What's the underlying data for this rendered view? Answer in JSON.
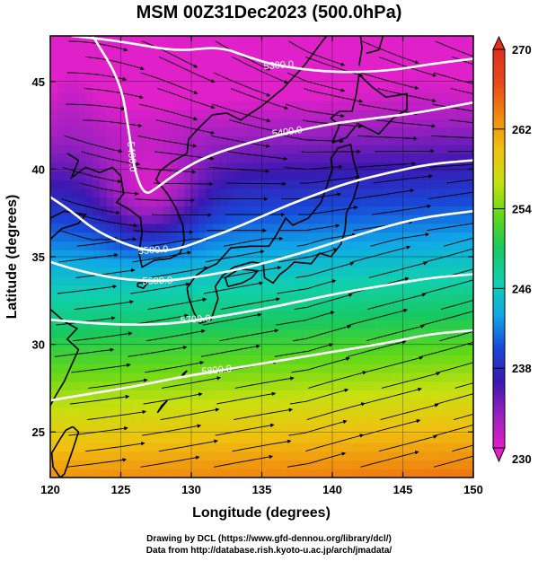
{
  "title": "MSM 00Z31Dec2023 (500.0hPa)",
  "x_axis": {
    "label": "Longitude (degrees)",
    "min": 120,
    "max": 150,
    "ticks": [
      "120",
      "125",
      "130",
      "135",
      "140",
      "145",
      "150"
    ]
  },
  "y_axis": {
    "label": "Latitude  (degrees)",
    "min": 22.4,
    "max": 47.6,
    "ticks": [
      "25",
      "30",
      "35",
      "40",
      "45"
    ]
  },
  "colorbar": {
    "min": 230,
    "max": 270,
    "ticks": [
      "230",
      "238",
      "246",
      "254",
      "262",
      "270"
    ],
    "colors": [
      "#e020c8",
      "#9a20c0",
      "#3a18b0",
      "#1848d8",
      "#10a8e8",
      "#10d0b0",
      "#18c860",
      "#60d818",
      "#c8e010",
      "#f0c010",
      "#f08810",
      "#e84818",
      "#e03020"
    ]
  },
  "contour_labels": [
    "5300.0",
    "5400.0",
    "5400.0",
    "5500.0",
    "5600.0",
    "5700.0",
    "5800.0"
  ],
  "footer": {
    "line1": "Drawing by DCL (https://www.gfd-dennou.org/library/dcl/)",
    "line2": "Data from http://database.rish.kyoto-u.ac.jp/arch/jmadata/"
  },
  "chart_data": {
    "type": "heatmap",
    "title": "MSM 00Z31Dec2023 (500.0hPa)",
    "xlabel": "Longitude (degrees)",
    "ylabel": "Latitude  (degrees)",
    "xlim": [
      120,
      150
    ],
    "ylim": [
      22.4,
      47.6
    ],
    "value_range": [
      230,
      270
    ],
    "field": "temperature (shading) with geopotential height contours and wind streamlines",
    "contours": [
      {
        "label": "5300.0",
        "points": [
          [
            121.5,
            47.6
          ],
          [
            125,
            47.3
          ],
          [
            129,
            46.7
          ],
          [
            132,
            47.0
          ],
          [
            134,
            46.4
          ],
          [
            136,
            45.9
          ],
          [
            140,
            45.5
          ],
          [
            144,
            45.6
          ],
          [
            147,
            46.0
          ],
          [
            150,
            46.3
          ]
        ]
      },
      {
        "label": "5400.0",
        "points": [
          [
            123,
            47.6
          ],
          [
            125,
            45
          ],
          [
            125.6,
            42
          ],
          [
            126,
            39.8
          ],
          [
            126.7,
            38.5
          ],
          [
            127.5,
            38.9
          ],
          [
            129,
            39.8
          ],
          [
            131,
            40.7
          ],
          [
            134,
            41.5
          ],
          [
            137,
            42.1
          ],
          [
            140,
            42.6
          ],
          [
            143,
            42.9
          ],
          [
            146,
            43.2
          ],
          [
            150,
            43.8
          ]
        ]
      },
      {
        "label": "5500.0",
        "points": [
          [
            120,
            38.4
          ],
          [
            121.5,
            37.6
          ],
          [
            123,
            36.6
          ],
          [
            125,
            35.8
          ],
          [
            127,
            35.3
          ],
          [
            129,
            35.4
          ],
          [
            131,
            36.0
          ],
          [
            133,
            36.6
          ],
          [
            135,
            37.3
          ],
          [
            137,
            38.0
          ],
          [
            139,
            38.6
          ],
          [
            141,
            39.2
          ],
          [
            144,
            39.8
          ],
          [
            147,
            40.3
          ],
          [
            150,
            40.5
          ]
        ]
      },
      {
        "label": "5600.0",
        "points": [
          [
            120,
            34.7
          ],
          [
            122,
            34.2
          ],
          [
            125,
            33.7
          ],
          [
            128,
            33.6
          ],
          [
            130,
            33.8
          ],
          [
            133,
            34.2
          ],
          [
            136,
            34.8
          ],
          [
            139,
            35.5
          ],
          [
            142,
            36.3
          ],
          [
            146,
            37.2
          ],
          [
            150,
            37.6
          ]
        ]
      },
      {
        "label": "5700.0",
        "points": [
          [
            120,
            31.4
          ],
          [
            123,
            31.2
          ],
          [
            126,
            31.1
          ],
          [
            129,
            31.2
          ],
          [
            132,
            31.6
          ],
          [
            135,
            32.0
          ],
          [
            138,
            32.5
          ],
          [
            141,
            33.0
          ],
          [
            144,
            33.4
          ],
          [
            147,
            33.8
          ],
          [
            150,
            34.0
          ]
        ]
      },
      {
        "label": "5800.0",
        "points": [
          [
            120,
            26.8
          ],
          [
            123,
            27.2
          ],
          [
            126,
            27.6
          ],
          [
            129,
            28.1
          ],
          [
            132,
            28.5
          ],
          [
            135,
            28.9
          ],
          [
            138,
            29.3
          ],
          [
            141,
            29.7
          ],
          [
            144,
            30.1
          ],
          [
            147,
            30.6
          ],
          [
            150,
            30.8
          ]
        ]
      }
    ]
  }
}
